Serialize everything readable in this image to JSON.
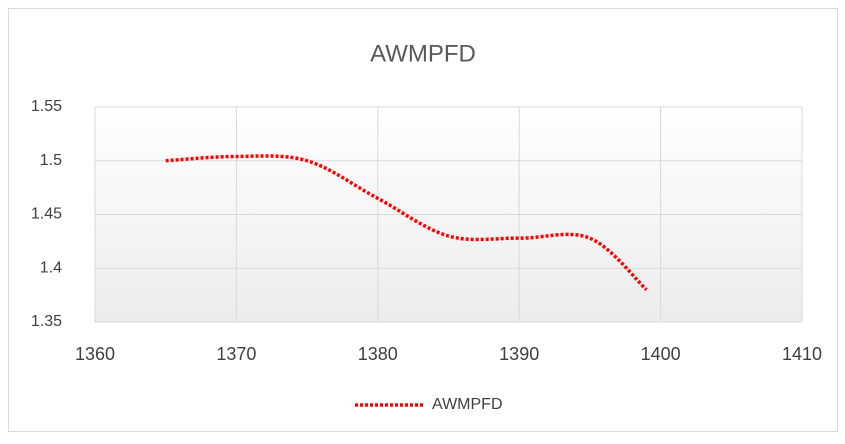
{
  "chart_data": {
    "type": "line",
    "title": "AWMPFD",
    "x": [
      1365,
      1370,
      1375,
      1380,
      1385,
      1390,
      1395,
      1399
    ],
    "series": [
      {
        "name": "AWMPFD",
        "color": "#ff0000",
        "values": [
          1.5,
          1.504,
          1.5,
          1.465,
          1.43,
          1.428,
          1.428,
          1.38
        ]
      }
    ],
    "xlim": [
      1360,
      1410
    ],
    "xticks": [
      1360,
      1370,
      1380,
      1390,
      1400,
      1410
    ],
    "ylim": [
      1.35,
      1.55
    ],
    "yticks": [
      1.35,
      1.4,
      1.45,
      1.5,
      1.55
    ],
    "grid": true,
    "legend": "bottom",
    "smooth": true,
    "line_style": "dotted"
  }
}
